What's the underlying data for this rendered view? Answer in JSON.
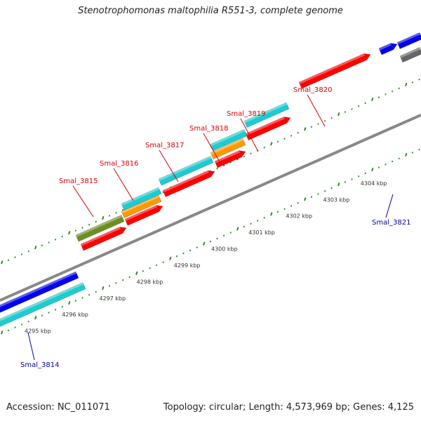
{
  "title": "Stenotrophomonas maltophilia R551-3, complete genome",
  "accession_text": "Accession: NC_011071",
  "summary_text": "Topology: circular; Length: 4,573,969 bp; Genes: 4,125",
  "colors": {
    "label_red": "#dd0000",
    "label_blue": "#0000aa",
    "gene_red": "#ff0000",
    "gene_cyan": "#1ecbd0",
    "gene_blue": "#0000ee",
    "gene_olive": "#6b8e23",
    "gene_orange": "#ff9900",
    "gene_gray": "#666666",
    "backbone": "#888888",
    "tick": "#2a8a2a"
  },
  "scale_labels": [
    {
      "text": "4295 kbp",
      "kbp": 4295
    },
    {
      "text": "4296 kbp",
      "kbp": 4296
    },
    {
      "text": "4297 kbp",
      "kbp": 4297
    },
    {
      "text": "4298 kbp",
      "kbp": 4298
    },
    {
      "text": "4299 kbp",
      "kbp": 4299
    },
    {
      "text": "4300 kbp",
      "kbp": 4300
    },
    {
      "text": "4301 kbp",
      "kbp": 4301
    },
    {
      "text": "4302 kbp",
      "kbp": 4302
    },
    {
      "text": "4303 kbp",
      "kbp": 4303
    },
    {
      "text": "4304 kbp",
      "kbp": 4304
    }
  ],
  "gene_labels": [
    {
      "text": "Smal_3814",
      "color": "blue"
    },
    {
      "text": "Smal_3815",
      "color": "red"
    },
    {
      "text": "Smal_3816",
      "color": "red"
    },
    {
      "text": "Smal_3817",
      "color": "red"
    },
    {
      "text": "Smal_3818",
      "color": "red"
    },
    {
      "text": "Smal_3819",
      "color": "red"
    },
    {
      "text": "Smal_3820",
      "color": "red"
    },
    {
      "text": "Smal_3821",
      "color": "blue"
    }
  ]
}
